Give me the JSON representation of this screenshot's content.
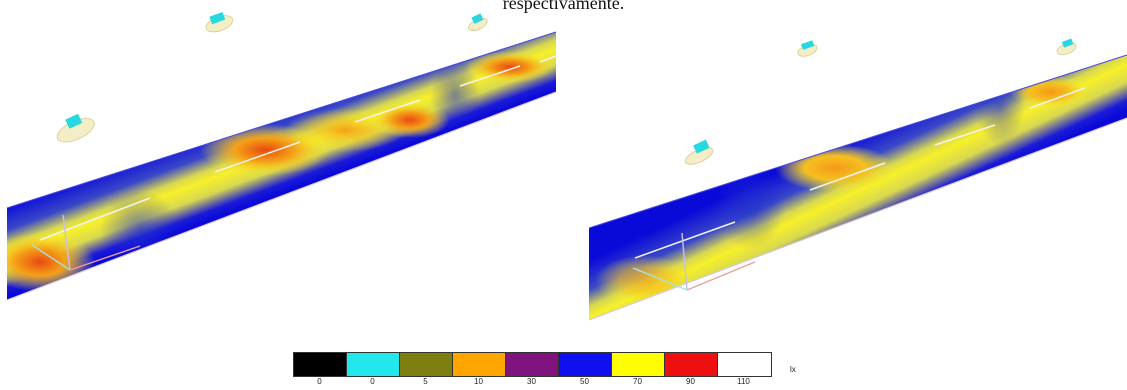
{
  "caption": "respectivamente.",
  "legend": {
    "unit": "lx",
    "bins": [
      {
        "label": "0",
        "color": "#000000"
      },
      {
        "label": "0",
        "color": "#22e8ee"
      },
      {
        "label": "5",
        "color": "#7f7f10"
      },
      {
        "label": "10",
        "color": "#ffa500"
      },
      {
        "label": "30",
        "color": "#7f147f"
      },
      {
        "label": "50",
        "color": "#1010ee"
      },
      {
        "label": "70",
        "color": "#ffff00"
      },
      {
        "label": "90",
        "color": "#ee1010"
      },
      {
        "label": "110",
        "color": "#ffffff"
      }
    ]
  },
  "colors": {
    "road_edge": "#0a0ad8",
    "road_fill": "#f7f02a",
    "hotspot": "#f08a10",
    "luminaire": "#27d8e0"
  },
  "icons": [
    "luminaire-icon",
    "axis-gizmo-icon"
  ]
}
